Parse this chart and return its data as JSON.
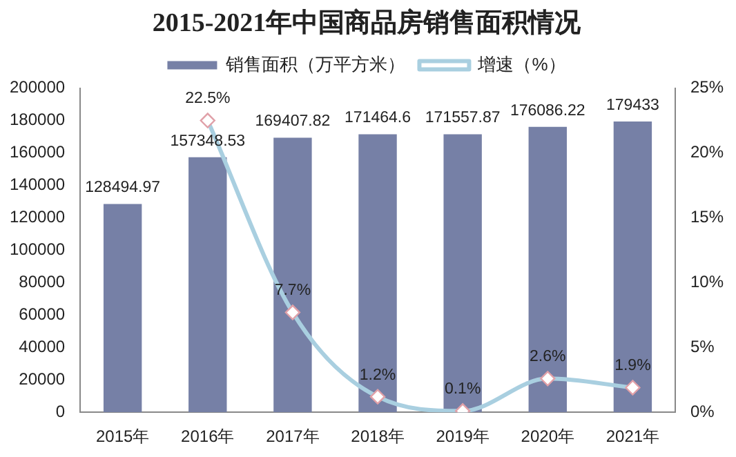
{
  "chart_data": {
    "type": "bar",
    "title": "2015-2021年中国商品房销售面积情况",
    "categories": [
      "2015年",
      "2016年",
      "2017年",
      "2018年",
      "2019年",
      "2020年",
      "2021年"
    ],
    "series": [
      {
        "name": "销售面积（万平方米）",
        "color": "#7680a6",
        "values": [
          128494.97,
          157348.53,
          169407.82,
          171464.6,
          171557.87,
          176086.22,
          179433
        ],
        "value_labels": [
          "128494.97",
          "157348.53",
          "169407.82",
          "171464.6",
          "171557.87",
          "176086.22",
          "179433"
        ]
      },
      {
        "name": "增速（%）",
        "type": "line",
        "axis": "y2",
        "color": "#a9cfe0",
        "marker": "diamond",
        "values": [
          null,
          22.5,
          7.7,
          1.2,
          0.1,
          2.6,
          1.9
        ],
        "value_labels": [
          null,
          "22.5%",
          "7.7%",
          "1.2%",
          "0.1%",
          "2.6%",
          "1.9%"
        ]
      }
    ],
    "ylim": [
      0,
      200000
    ],
    "yticks": [
      0,
      20000,
      40000,
      60000,
      80000,
      100000,
      120000,
      140000,
      160000,
      180000,
      200000
    ],
    "y2lim": [
      0,
      25
    ],
    "y2ticks": [
      {
        "value": 0,
        "label": "0%"
      },
      {
        "value": 5,
        "label": "5%"
      },
      {
        "value": 10,
        "label": "10%"
      },
      {
        "value": 15,
        "label": "15%"
      },
      {
        "value": 20,
        "label": "20%"
      },
      {
        "value": 25,
        "label": "25%"
      }
    ],
    "legend": "top",
    "grid": false
  }
}
